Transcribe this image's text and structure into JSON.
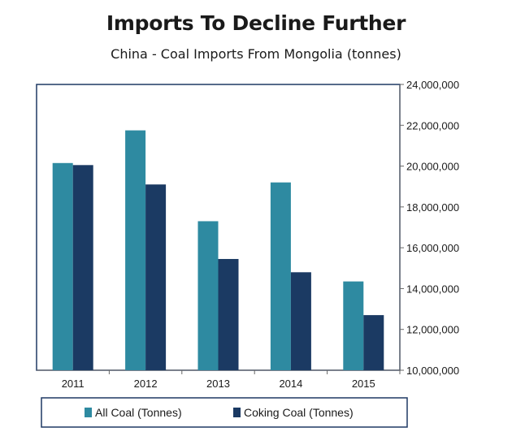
{
  "header": {
    "title": "Imports To Decline Further",
    "subtitle": "China - Coal Imports From Mongolia (tonnes)"
  },
  "colors": {
    "all_coal": "#2E8AA1",
    "coking_coal": "#1B3A63",
    "frame": "#1F3864"
  },
  "chart_data": {
    "type": "bar",
    "categories": [
      "2011",
      "2012",
      "2013",
      "2014",
      "2015"
    ],
    "series": [
      {
        "name": "All Coal (Tonnes)",
        "values": [
          20150000,
          21750000,
          17300000,
          19200000,
          14350000
        ]
      },
      {
        "name": "Coking Coal (Tonnes)",
        "values": [
          20050000,
          19100000,
          15450000,
          14800000,
          12700000
        ]
      }
    ],
    "ylim": [
      10000000,
      24000000
    ],
    "yticks": [
      "10,000,000",
      "12,000,000",
      "14,000,000",
      "16,000,000",
      "18,000,000",
      "20,000,000",
      "22,000,000",
      "24,000,000"
    ],
    "ytick_values": [
      10000000,
      12000000,
      14000000,
      16000000,
      18000000,
      20000000,
      22000000,
      24000000
    ],
    "y_axis_side": "right",
    "grid": false,
    "legend_position": "bottom"
  }
}
